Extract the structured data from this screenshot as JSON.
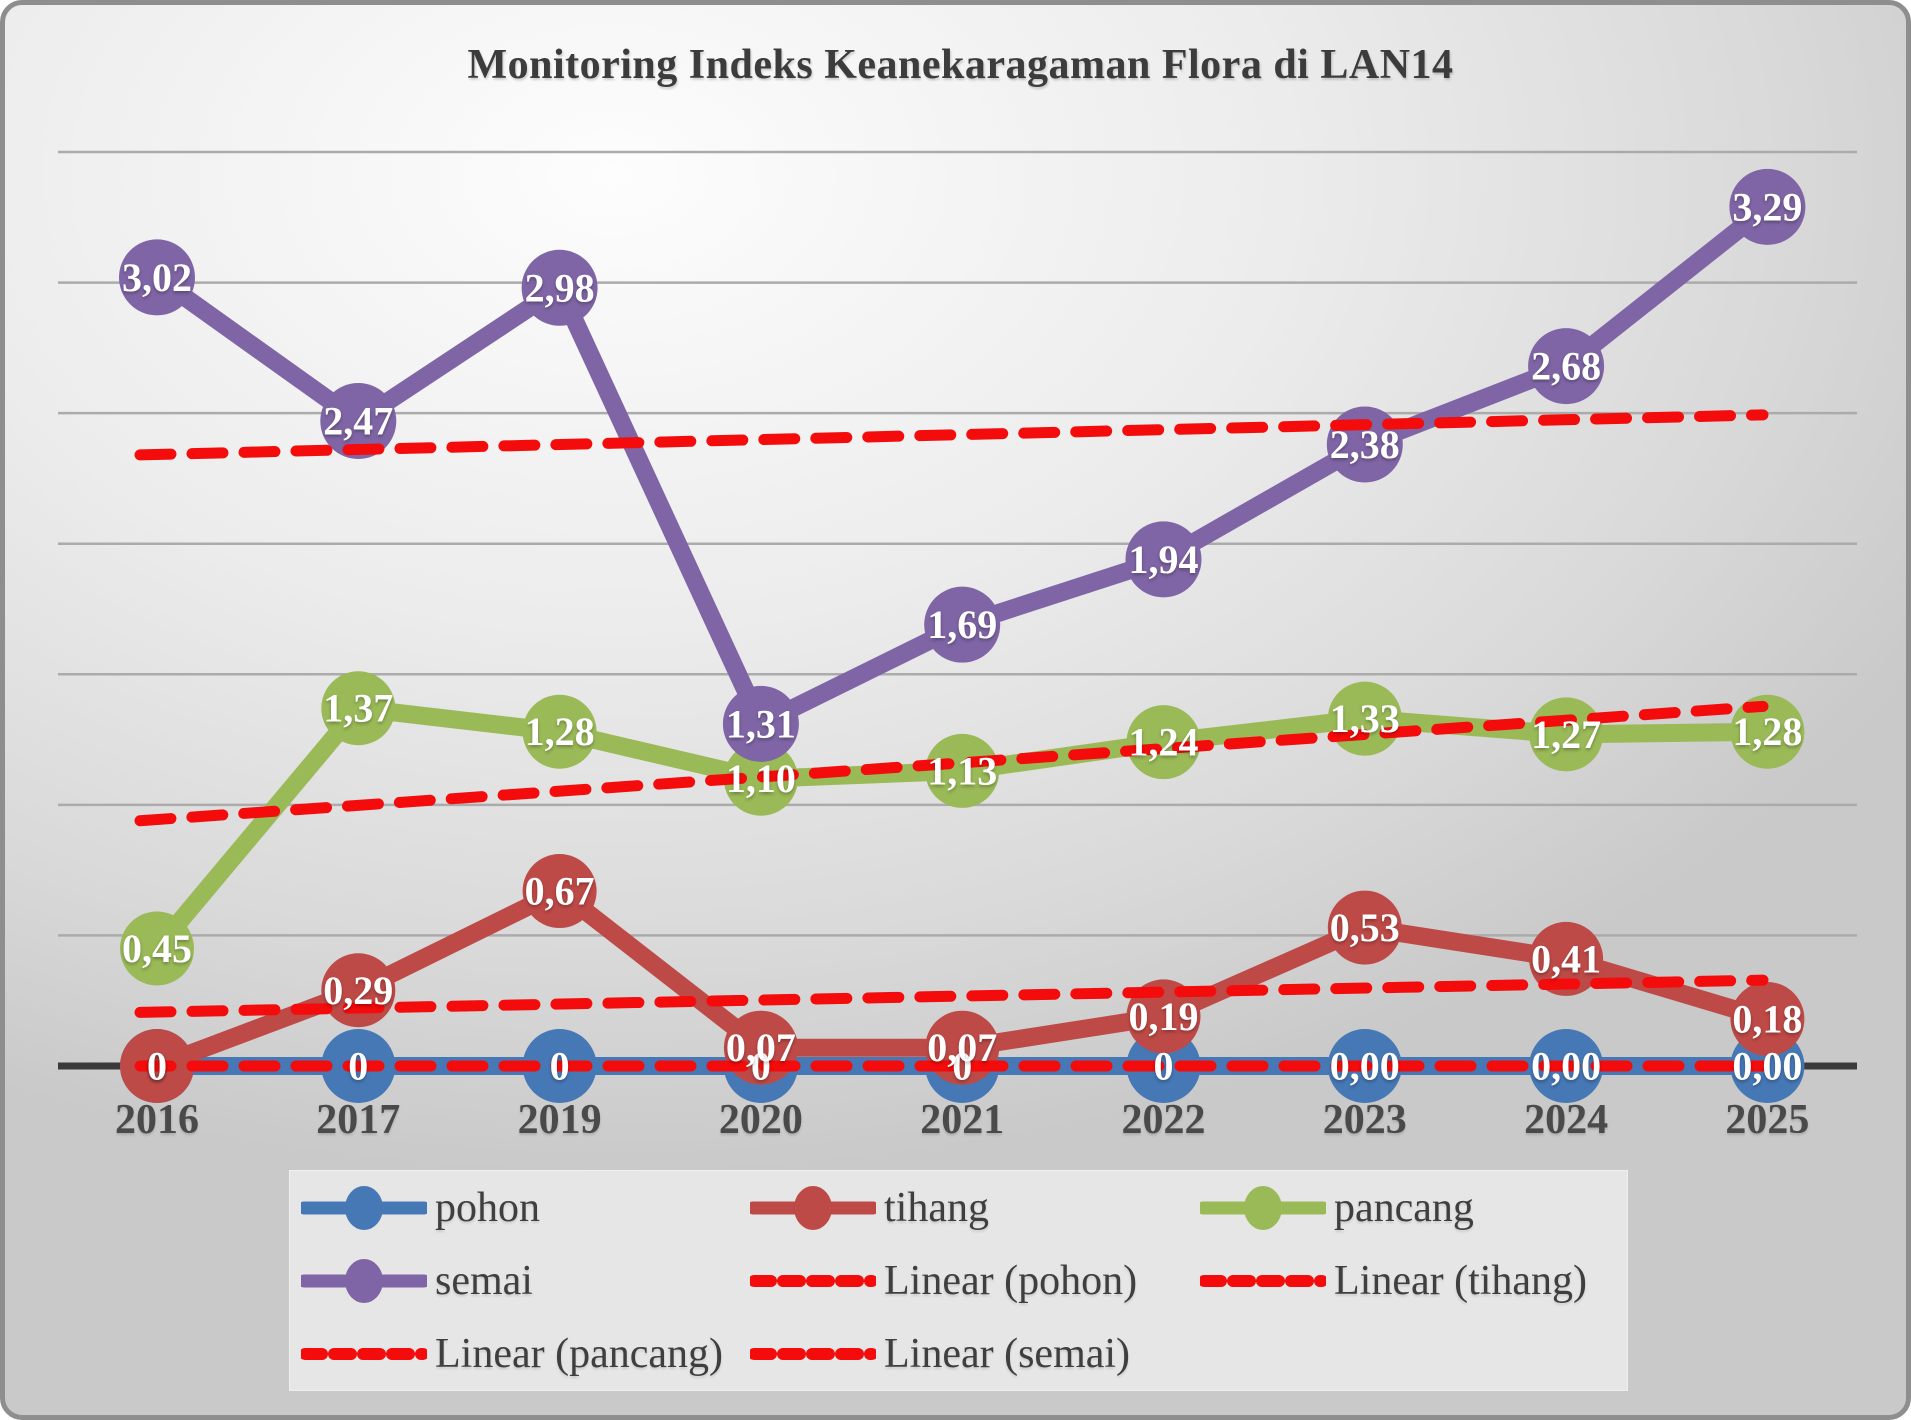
{
  "chart": {
    "title": "Monitoring Indeks Keanekaragaman Flora di LAN14"
  },
  "chart_data": {
    "type": "line",
    "title": "Monitoring Indeks Keanekaragaman Flora di LAN14",
    "categories": [
      "2016",
      "2017",
      "2019",
      "2020",
      "2021",
      "2022",
      "2023",
      "2024",
      "2025"
    ],
    "series": [
      {
        "name": "pohon",
        "color": "#4678b6",
        "values": [
          0,
          0,
          0,
          0,
          0,
          0,
          0,
          0,
          0
        ],
        "labels": [
          "0",
          "0",
          "0",
          "0",
          "0",
          "0",
          "0,00",
          "0,00",
          "0,00"
        ]
      },
      {
        "name": "tihang",
        "color": "#be4a47",
        "values": [
          0,
          0.29,
          0.67,
          0.07,
          0.07,
          0.19,
          0.53,
          0.41,
          0.18
        ],
        "labels": [
          "0",
          "0,29",
          "0,67",
          "0,07",
          "0,07",
          "0,19",
          "0,53",
          "0,41",
          "0,18"
        ]
      },
      {
        "name": "pancang",
        "color": "#9aba58",
        "values": [
          0.45,
          1.37,
          1.28,
          1.1,
          1.13,
          1.24,
          1.33,
          1.27,
          1.28
        ],
        "labels": [
          "0,45",
          "1,37",
          "1,28",
          "1,10",
          "1,13",
          "1,24",
          "1,33",
          "1,27",
          "1,28"
        ]
      },
      {
        "name": "semai",
        "color": "#7f65a5",
        "values": [
          3.02,
          2.47,
          2.98,
          1.31,
          1.69,
          1.94,
          2.38,
          2.68,
          3.29
        ],
        "labels": [
          "3,02",
          "2,47",
          "2,98",
          "1,31",
          "1,69",
          "1,94",
          "2,38",
          "2,68",
          "3,29"
        ]
      }
    ],
    "trendlines": [
      {
        "name": "Linear (pohon)",
        "series": "pohon",
        "color": "#f40b0b",
        "style": "dashed"
      },
      {
        "name": "Linear (tihang)",
        "series": "tihang",
        "color": "#f40b0b",
        "style": "dashed"
      },
      {
        "name": "Linear (pancang)",
        "series": "pancang",
        "color": "#f40b0b",
        "style": "dashed"
      },
      {
        "name": "Linear (semai)",
        "series": "semai",
        "color": "#f40b0b",
        "style": "dashed"
      }
    ],
    "ylim": [
      0,
      3.5
    ],
    "grid_step": 0.5,
    "grid": "horizontal-only",
    "y_axis_labels_visible": false,
    "legend_position": "bottom"
  },
  "legend": {
    "items": [
      {
        "label": "pohon",
        "swatch": "line-marker",
        "color": "#4678b6"
      },
      {
        "label": "tihang",
        "swatch": "line-marker",
        "color": "#be4a47"
      },
      {
        "label": "pancang",
        "swatch": "line-marker",
        "color": "#9aba58"
      },
      {
        "label": "semai",
        "swatch": "line-marker",
        "color": "#7f65a5"
      },
      {
        "label": "Linear (pohon)",
        "swatch": "dash",
        "color": "#f40b0b"
      },
      {
        "label": "Linear (tihang)",
        "swatch": "dash",
        "color": "#f40b0b"
      },
      {
        "label": "Linear (pancang)",
        "swatch": "dash",
        "color": "#f40b0b"
      },
      {
        "label": "Linear (semai)",
        "swatch": "dash",
        "color": "#f40b0b"
      }
    ]
  }
}
